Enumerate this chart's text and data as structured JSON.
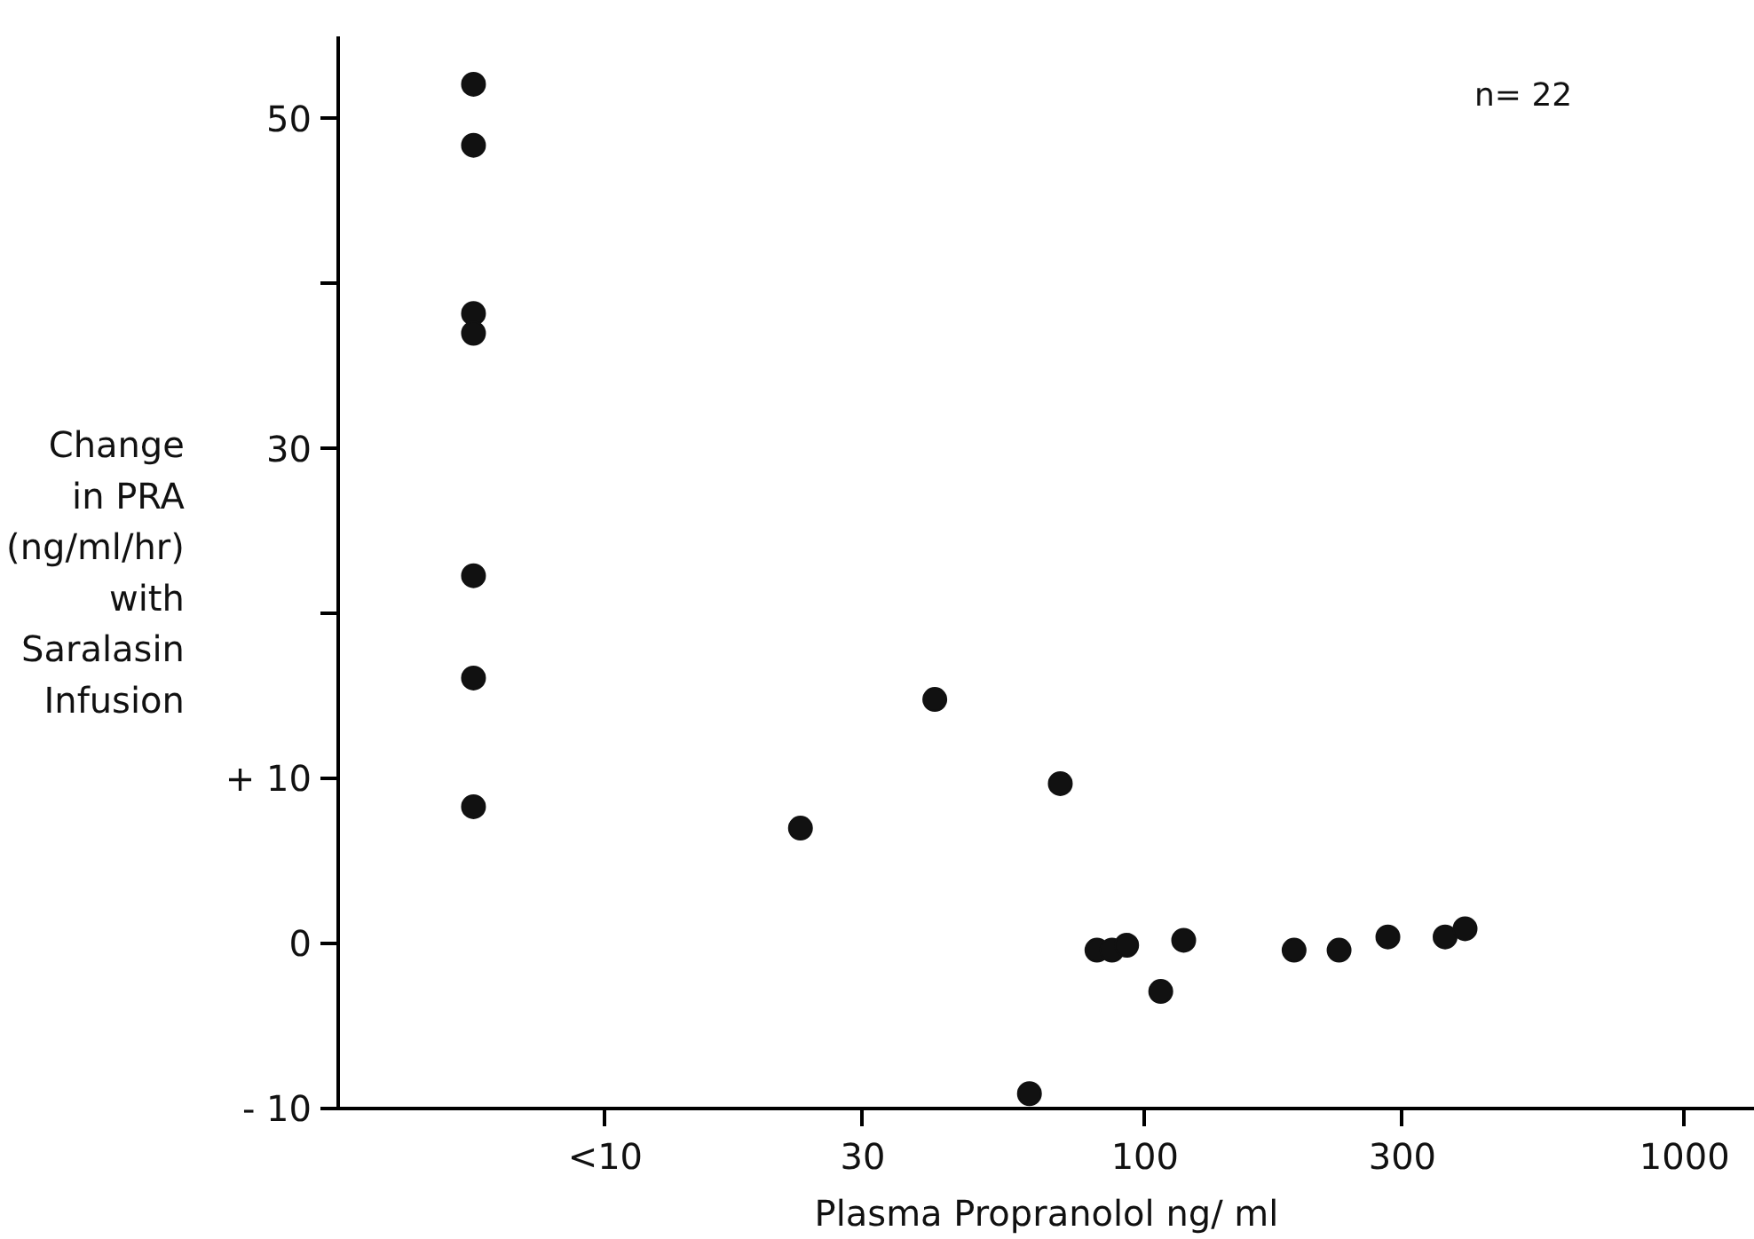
{
  "chart_data": {
    "type": "scatter",
    "xlabel": "Plasma Propranolol ng/ ml",
    "ylabel": "Change\nin PRA\n(ng/ml/hr)\nwith\nSaralasin\nInfusion",
    "annotations": [
      "n= 22"
    ],
    "log": "x",
    "xlim": [
      3.2,
      1350
    ],
    "xticks": [
      {
        "value": 10,
        "label": "<10"
      },
      30,
      100,
      300,
      1000
    ],
    "ylim": [
      -10,
      55
    ],
    "yticks": [
      {
        "value": -10,
        "label": "- 10"
      },
      0,
      {
        "value": 10,
        "label": "+ 10"
      },
      {
        "value": 20,
        "label": null
      },
      30,
      {
        "value": 40,
        "label": null
      },
      50
    ],
    "grid": false,
    "marker": "circle",
    "series": [
      {
        "color": "#111111",
        "x": [
          5.7,
          5.7,
          5.7,
          5.7,
          5.7,
          5.7,
          5.7,
          23.0,
          40.8,
          69.7,
          61.1,
          81.5,
          86.9,
          92.5,
          107,
          118,
          189,
          229,
          282,
          360,
          392
        ],
        "values": [
          52.1,
          48.4,
          38.2,
          37.0,
          22.3,
          16.1,
          8.3,
          7.0,
          14.8,
          9.7,
          -9.1,
          -0.4,
          -0.4,
          -0.1,
          -2.9,
          0.2,
          -0.4,
          -0.4,
          0.4,
          0.4,
          0.9
        ]
      }
    ]
  }
}
